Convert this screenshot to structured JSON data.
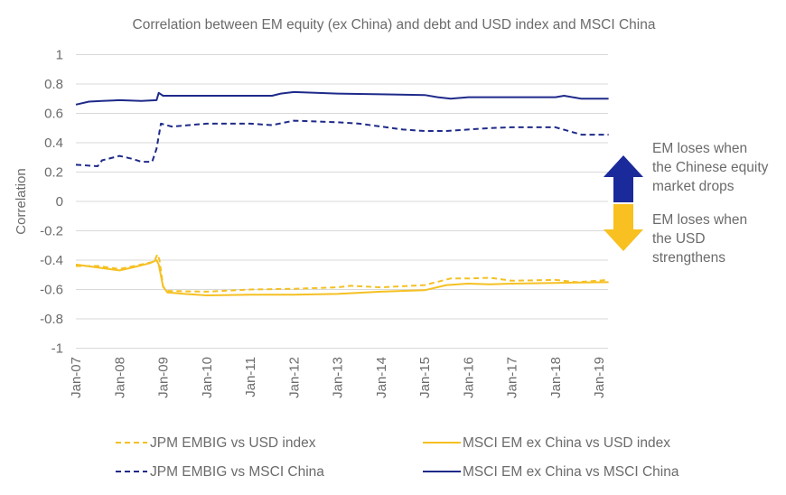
{
  "chart_data": {
    "type": "line",
    "title": "Correlation between EM equity (ex China) and debt and USD index and MSCI China",
    "xlabel": "",
    "ylabel": "Correlation",
    "ylim": [
      -1,
      1
    ],
    "yticks": [
      1,
      0.8,
      0.6,
      0.4,
      0.2,
      0,
      -0.2,
      -0.4,
      -0.6,
      -0.8,
      -1
    ],
    "ytick_labels": [
      "1",
      "0.8",
      "0.6",
      "0.4",
      "0.2",
      "0",
      "-0.2",
      "-0.4",
      "-0.6",
      "-0.8",
      "-1"
    ],
    "xlim": [
      2007.0,
      2019.22
    ],
    "xticks": [
      2007,
      2008,
      2009,
      2010,
      2011,
      2012,
      2013,
      2014,
      2015,
      2016,
      2017,
      2018,
      2019
    ],
    "xtick_labels": [
      "Jan-07",
      "Jan-08",
      "Jan-09",
      "Jan-10",
      "Jan-11",
      "Jan-12",
      "Jan-13",
      "Jan-14",
      "Jan-15",
      "Jan-16",
      "Jan-17",
      "Jan-18",
      "Jan-19"
    ],
    "grid": "horizontal",
    "legend_position": "bottom",
    "series": [
      {
        "name": "JPM EMBIG vs USD index",
        "color": "#f5c022",
        "style": "dashed",
        "x": [
          2007.0,
          2007.5,
          2008.0,
          2008.5,
          2008.8,
          2008.87,
          2008.92,
          2009.0,
          2009.1,
          2010.0,
          2011.0,
          2012.0,
          2013.0,
          2013.3,
          2014.0,
          2015.0,
          2015.6,
          2016.0,
          2016.5,
          2017.0,
          2018.0,
          2018.5,
          2019.22
        ],
        "values": [
          -0.44,
          -0.44,
          -0.46,
          -0.43,
          -0.41,
          -0.36,
          -0.4,
          -0.58,
          -0.61,
          -0.615,
          -0.6,
          -0.595,
          -0.585,
          -0.575,
          -0.585,
          -0.57,
          -0.525,
          -0.525,
          -0.52,
          -0.54,
          -0.535,
          -0.55,
          -0.535
        ]
      },
      {
        "name": "MSCI EM ex China vs USD index",
        "color": "#f5c022",
        "style": "solid",
        "x": [
          2007.0,
          2007.5,
          2008.0,
          2008.3,
          2008.7,
          2008.85,
          2008.9,
          2009.0,
          2009.1,
          2009.5,
          2010.0,
          2011.0,
          2012.0,
          2013.0,
          2013.3,
          2014.0,
          2015.0,
          2015.5,
          2016.0,
          2016.5,
          2017.0,
          2018.0,
          2019.22
        ],
        "values": [
          -0.43,
          -0.45,
          -0.47,
          -0.45,
          -0.42,
          -0.4,
          -0.43,
          -0.58,
          -0.62,
          -0.63,
          -0.64,
          -0.635,
          -0.635,
          -0.63,
          -0.625,
          -0.615,
          -0.605,
          -0.57,
          -0.56,
          -0.565,
          -0.56,
          -0.555,
          -0.55
        ]
      },
      {
        "name": "JPM EMBIG vs MSCI China",
        "color": "#1e2a8a",
        "style": "dashed",
        "x": [
          2007.0,
          2007.5,
          2007.6,
          2008.0,
          2008.3,
          2008.5,
          2008.75,
          2008.85,
          2008.95,
          2009.2,
          2010.0,
          2011.0,
          2011.5,
          2012.0,
          2013.0,
          2013.5,
          2014.0,
          2014.5,
          2015.0,
          2015.5,
          2016.0,
          2016.5,
          2017.0,
          2018.0,
          2018.3,
          2018.6,
          2019.22
        ],
        "values": [
          0.25,
          0.24,
          0.28,
          0.31,
          0.29,
          0.27,
          0.27,
          0.36,
          0.53,
          0.51,
          0.53,
          0.53,
          0.52,
          0.55,
          0.54,
          0.53,
          0.51,
          0.49,
          0.48,
          0.48,
          0.49,
          0.5,
          0.505,
          0.505,
          0.48,
          0.455,
          0.455
        ]
      },
      {
        "name": "MSCI EM ex China vs MSCI China",
        "color": "#1e2a8a",
        "style": "solid",
        "x": [
          2007.0,
          2007.3,
          2007.6,
          2008.0,
          2008.5,
          2008.85,
          2008.9,
          2009.0,
          2010.0,
          2011.0,
          2011.5,
          2011.7,
          2012.0,
          2012.5,
          2013.0,
          2014.0,
          2015.0,
          2015.3,
          2015.6,
          2016.0,
          2017.0,
          2018.0,
          2018.2,
          2018.6,
          2019.22
        ],
        "values": [
          0.66,
          0.68,
          0.685,
          0.69,
          0.685,
          0.69,
          0.74,
          0.72,
          0.72,
          0.72,
          0.72,
          0.735,
          0.745,
          0.74,
          0.735,
          0.73,
          0.725,
          0.71,
          0.7,
          0.71,
          0.71,
          0.71,
          0.72,
          0.7,
          0.7
        ]
      }
    ],
    "annotations": [
      {
        "arrow": "up",
        "color": "#1a2a9a",
        "lines": [
          "EM loses when",
          "the Chinese equity",
          "market drops"
        ]
      },
      {
        "arrow": "down",
        "color": "#f8c020",
        "lines": [
          "EM loses when",
          "the USD",
          "strengthens"
        ]
      }
    ]
  }
}
